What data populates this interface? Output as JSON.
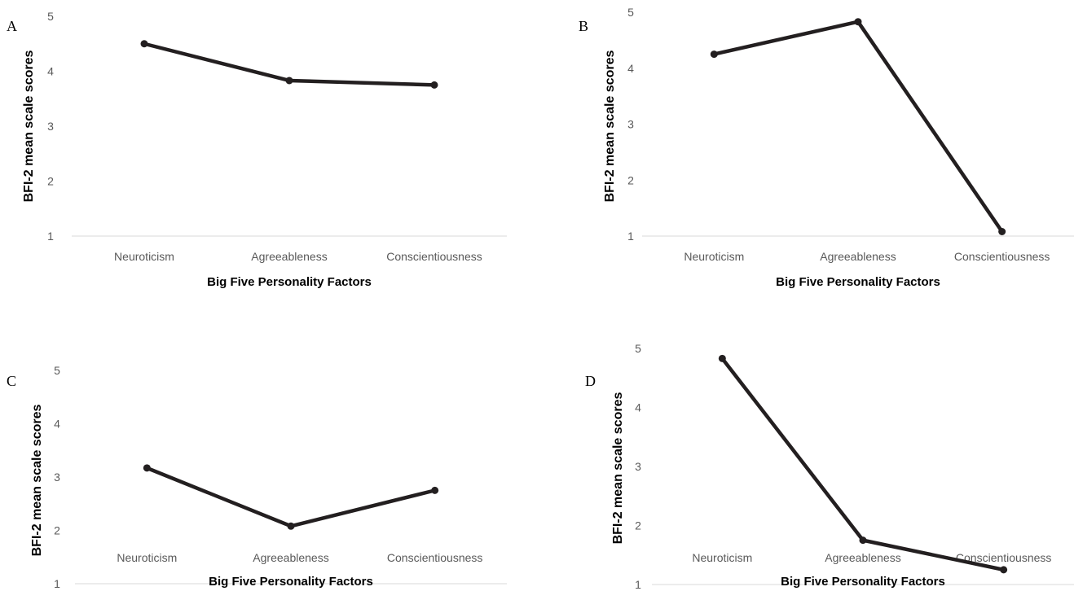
{
  "chart_data": [
    {
      "panel": "A",
      "type": "line",
      "categories": [
        "Neuroticism",
        "Agreeableness",
        "Conscientiousness"
      ],
      "values": [
        4.5,
        3.83,
        3.75
      ],
      "xlabel": "Big Five Personality Factors",
      "ylabel": "BFI-2 mean scale scores",
      "ylim": [
        1,
        5
      ],
      "yticks": [
        "1",
        "2",
        "3",
        "4",
        "5"
      ],
      "grid": false,
      "line_color": "#231f20"
    },
    {
      "panel": "B",
      "type": "line",
      "categories": [
        "Neuroticism",
        "Agreeableness",
        "Conscientiousness"
      ],
      "values": [
        4.25,
        4.83,
        1.08
      ],
      "xlabel": "Big Five Personality Factors",
      "ylabel": "BFI-2 mean scale scores",
      "ylim": [
        1,
        5
      ],
      "yticks": [
        "1",
        "2",
        "3",
        "4",
        "5"
      ],
      "grid": false,
      "line_color": "#231f20"
    },
    {
      "panel": "C",
      "type": "line",
      "categories": [
        "Neuroticism",
        "Agreeableness",
        "Conscientiousness"
      ],
      "values": [
        3.17,
        2.08,
        2.75
      ],
      "xlabel": "Big Five Personality Factors",
      "ylabel": "BFI-2 mean scale scores",
      "ylim": [
        1,
        5
      ],
      "yticks": [
        "1",
        "2",
        "3",
        "4",
        "5"
      ],
      "grid": false,
      "line_color": "#231f20"
    },
    {
      "panel": "D",
      "type": "line",
      "categories": [
        "Neuroticism",
        "Agreeableness",
        "Conscientiousness"
      ],
      "values": [
        4.83,
        1.75,
        1.25
      ],
      "xlabel": "Big Five Personality Factors",
      "ylabel": "BFI-2 mean scale scores",
      "ylim": [
        1,
        5
      ],
      "yticks": [
        "1",
        "2",
        "3",
        "4",
        "5"
      ],
      "grid": false,
      "line_color": "#231f20"
    }
  ]
}
